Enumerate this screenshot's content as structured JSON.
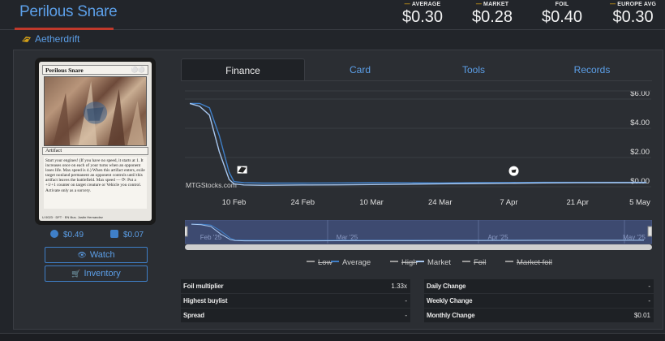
{
  "card": {
    "title": "Perilous Snare",
    "set_name": "Aetherdrift",
    "name_on_card": "Perilous Snare",
    "mana": "⚪⚪",
    "type_line": "Artifact",
    "rules_text": "Start your engines! (If you have no speed, it starts at 1. It increases once on each of your turns when an opponent loses life. Max speed is 4.) When this artifact enters, exile target nonland permanent an opponent controls until this artifact leaves the battlefield. Max speed — ⟳: Put a +1/+1 counter on target creature or Vehicle you control. Activate only as a sorcery.",
    "collector_info": "U 0023 · DFT · EN  Illus. Justin Hernandez"
  },
  "header_prices": [
    {
      "label": "AVERAGE",
      "value": "$0.30"
    },
    {
      "label": "MARKET",
      "value": "$0.28"
    },
    {
      "label": "FOIL",
      "value": "$0.40"
    },
    {
      "label": "EUROPE AVG",
      "value": "$0.30"
    }
  ],
  "mini_prices": {
    "tcg": "$0.49",
    "ck": "$0.07"
  },
  "buttons": {
    "watch": "Watch",
    "inventory": "Inventory"
  },
  "tabs": [
    "Finance",
    "Card",
    "Tools",
    "Records"
  ],
  "active_tab": "Finance",
  "chart_data": {
    "type": "line",
    "x": [
      "2025-02-01",
      "2025-02-03",
      "2025-02-05",
      "2025-02-07",
      "2025-02-09",
      "2025-02-10",
      "2025-02-12",
      "2025-02-16",
      "2025-02-24",
      "2025-03-03",
      "2025-03-10",
      "2025-03-17",
      "2025-03-24",
      "2025-03-31",
      "2025-04-07",
      "2025-04-14",
      "2025-04-21",
      "2025-04-28",
      "2025-05-05"
    ],
    "series": [
      {
        "name": "Average",
        "color": "#3f7fc8",
        "values": [
          5.7,
          5.7,
          5.4,
          3.5,
          1.0,
          0.35,
          0.28,
          0.25,
          0.25,
          0.26,
          0.28,
          0.27,
          0.26,
          0.28,
          0.29,
          0.3,
          0.3,
          0.3,
          0.3
        ]
      },
      {
        "name": "Market",
        "color": "#a9c8f0",
        "values": [
          5.7,
          5.5,
          4.9,
          2.4,
          0.5,
          0.2,
          0.12,
          0.1,
          0.12,
          0.13,
          0.15,
          0.17,
          0.2,
          0.22,
          0.24,
          0.26,
          0.27,
          0.28,
          0.28
        ]
      }
    ],
    "xticks": [
      "10 Feb",
      "24 Feb",
      "10 Mar",
      "24 Mar",
      "7 Apr",
      "21 Apr",
      "5 May"
    ],
    "yticks": [
      "$0.00",
      "$2.00",
      "$4.00",
      "$6.00"
    ],
    "ylim": [
      0,
      6
    ],
    "watermark": "MTGStocks.com",
    "navigator_labels": [
      "Feb '25",
      "Mar '25",
      "Apr '25",
      "May '25"
    ]
  },
  "legend": [
    {
      "label": "Low",
      "color": "#9a9a9a",
      "off": true
    },
    {
      "label": "Average",
      "color": "#3f7fc8",
      "off": false
    },
    {
      "label": "High",
      "color": "#9a9a9a",
      "off": true
    },
    {
      "label": "Market",
      "color": "#a9c8f0",
      "off": false
    },
    {
      "label": "Foil",
      "color": "#9a9a9a",
      "off": true
    },
    {
      "label": "Market foil",
      "color": "#9a9a9a",
      "off": true
    }
  ],
  "stats_left": [
    {
      "label": "Foil multiplier",
      "value": "1.33x"
    },
    {
      "label": "Highest buylist",
      "value": "-"
    },
    {
      "label": "Spread",
      "value": "-"
    }
  ],
  "stats_right": [
    {
      "label": "Daily Change",
      "value": "-"
    },
    {
      "label": "Weekly Change",
      "value": "-"
    },
    {
      "label": "Monthly Change",
      "value": "$0.01"
    }
  ]
}
